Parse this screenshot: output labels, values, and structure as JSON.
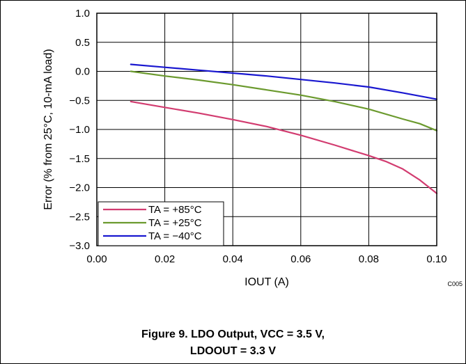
{
  "chart_data": {
    "type": "line",
    "xlabel": "IOUT (A)",
    "ylabel": "Error (% from 25°C,  10-mA load)",
    "xlim": [
      0,
      0.1
    ],
    "ylim": [
      -3.0,
      1.0
    ],
    "xticks": [
      0.0,
      0.02,
      0.04,
      0.06,
      0.08,
      0.1
    ],
    "xtick_labels": [
      "0.00",
      "0.02",
      "0.04",
      "0.06",
      "0.08",
      "0.10"
    ],
    "yticks": [
      1.0,
      0.5,
      0.0,
      -0.5,
      -1.0,
      -1.5,
      -2.0,
      -2.5,
      -3.0
    ],
    "ytick_labels": [
      "1.0",
      "0.5",
      "0.0",
      "−0.5",
      "−1.0",
      "−1.5",
      "−2.0",
      "−2.5",
      "−3.0"
    ],
    "grid": true,
    "legend_position": "bottom-left",
    "series": [
      {
        "name": "TA = +85°C",
        "color": "#d23c70",
        "x": [
          0.01,
          0.02,
          0.03,
          0.04,
          0.05,
          0.06,
          0.07,
          0.08,
          0.085,
          0.09,
          0.095,
          0.1
        ],
        "y": [
          -0.52,
          -0.62,
          -0.72,
          -0.83,
          -0.95,
          -1.1,
          -1.27,
          -1.45,
          -1.55,
          -1.68,
          -1.87,
          -2.1
        ]
      },
      {
        "name": "TA = +25°C",
        "color": "#6b9a2e",
        "x": [
          0.01,
          0.02,
          0.03,
          0.04,
          0.05,
          0.06,
          0.07,
          0.08,
          0.09,
          0.095,
          0.1
        ],
        "y": [
          0.0,
          -0.08,
          -0.15,
          -0.23,
          -0.32,
          -0.41,
          -0.52,
          -0.65,
          -0.82,
          -0.9,
          -1.02
        ]
      },
      {
        "name": "TA = −40°C",
        "color": "#1a18d0",
        "x": [
          0.01,
          0.02,
          0.03,
          0.04,
          0.05,
          0.06,
          0.07,
          0.08,
          0.09,
          0.1
        ],
        "y": [
          0.12,
          0.07,
          0.02,
          -0.03,
          -0.08,
          -0.14,
          -0.2,
          -0.27,
          -0.37,
          -0.48
        ]
      }
    ],
    "annotation": "C005"
  },
  "caption": {
    "line1": "Figure 9. LDO Output, VCC = 3.5 V,",
    "line2": "LDOOUT = 3.3 V"
  }
}
